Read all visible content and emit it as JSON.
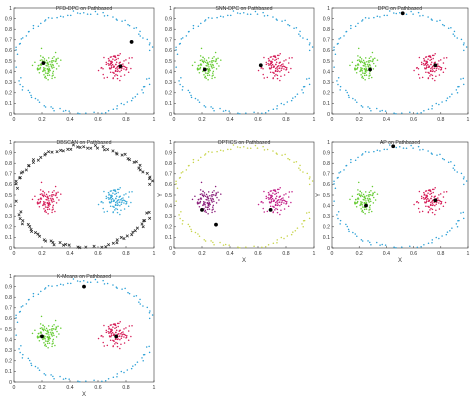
{
  "figure": {
    "panel_count": 7
  },
  "chart_data": [
    {
      "type": "scatter",
      "title": "PFD-DPC on Pathbased",
      "xlabel": "",
      "ylabel": "",
      "xlim": [
        0,
        1
      ],
      "ylim": [
        0,
        1
      ],
      "xticks": [
        "0",
        "0.2",
        "0.4",
        "0.6",
        "0.8",
        "1"
      ],
      "yticks": [
        "0",
        "0.1",
        "0.2",
        "0.3",
        "0.4",
        "0.5",
        "0.6",
        "0.7",
        "0.8",
        "0.9",
        "1"
      ],
      "grid": false,
      "series": [
        {
          "color": "#2a9fd6",
          "marker": "dot",
          "group": "ring"
        },
        {
          "color": "#66cc33",
          "marker": "dot",
          "group": "left-blob"
        },
        {
          "color": "#d61f5a",
          "marker": "dot",
          "group": "right-blob"
        }
      ],
      "centers": [
        [
          0.21,
          0.48
        ],
        [
          0.76,
          0.45
        ],
        [
          0.84,
          0.68
        ]
      ]
    },
    {
      "type": "scatter",
      "title": "SNN-DPC on Pathbased",
      "xlabel": "",
      "ylabel": "",
      "xlim": [
        0,
        1
      ],
      "ylim": [
        0,
        1
      ],
      "xticks": [
        "0",
        "0.2",
        "0.4",
        "0.6",
        "0.8",
        "1"
      ],
      "yticks": [
        "0",
        "0.1",
        "0.2",
        "0.3",
        "0.4",
        "0.5",
        "0.6",
        "0.7",
        "0.8",
        "0.9",
        "1"
      ],
      "grid": false,
      "series": [
        {
          "color": "#2a9fd6",
          "marker": "dot",
          "group": "ring"
        },
        {
          "color": "#66cc33",
          "marker": "dot",
          "group": "left-blob"
        },
        {
          "color": "#d61f5a",
          "marker": "dot",
          "group": "right-blob"
        }
      ],
      "centers": [
        [
          0.22,
          0.42
        ],
        [
          0.62,
          0.46
        ]
      ]
    },
    {
      "type": "scatter",
      "title": "DPC on Pathbased",
      "xlabel": "",
      "ylabel": "",
      "xlim": [
        0,
        1
      ],
      "ylim": [
        0,
        1
      ],
      "xticks": [
        "0",
        "0.2",
        "0.4",
        "0.6",
        "0.8",
        "1"
      ],
      "yticks": [
        "0",
        "0.1",
        "0.2",
        "0.3",
        "0.4",
        "0.5",
        "0.6",
        "0.7",
        "0.8",
        "0.9",
        "1"
      ],
      "grid": false,
      "series": [
        {
          "color": "#2a9fd6",
          "marker": "dot",
          "group": "ring"
        },
        {
          "color": "#66cc33",
          "marker": "dot",
          "group": "left-blob"
        },
        {
          "color": "#d61f5a",
          "marker": "dot",
          "group": "right-blob"
        }
      ],
      "centers": [
        [
          0.28,
          0.42
        ],
        [
          0.76,
          0.46
        ],
        [
          0.52,
          0.95
        ]
      ]
    },
    {
      "type": "scatter",
      "title": "DBSCAN on Pathbased",
      "xlabel": "",
      "ylabel": "",
      "xlim": [
        0,
        1
      ],
      "ylim": [
        0,
        1
      ],
      "xticks": [
        "0",
        "0.2",
        "0.4",
        "0.6",
        "0.8",
        "1"
      ],
      "yticks": [
        "0",
        "0.1",
        "0.2",
        "0.3",
        "0.4",
        "0.5",
        "0.6",
        "0.7",
        "0.8",
        "0.9",
        "1"
      ],
      "grid": false,
      "series": [
        {
          "color": "#222222",
          "marker": "x",
          "group": "ring"
        },
        {
          "color": "#d61f5a",
          "marker": "dot",
          "group": "left-blob"
        },
        {
          "color": "#3aaad8",
          "marker": "dot",
          "group": "right-blob"
        }
      ],
      "centers": []
    },
    {
      "type": "scatter",
      "title": "OPTICS on Pathbased",
      "xlabel": "X",
      "ylabel": "Y",
      "xlim": [
        0,
        1
      ],
      "ylim": [
        0,
        1
      ],
      "xticks": [
        "0",
        "0.2",
        "0.4",
        "0.6",
        "0.8",
        "1"
      ],
      "yticks": [
        "0",
        "0.1",
        "0.2",
        "0.3",
        "0.4",
        "0.5",
        "0.6",
        "0.7",
        "0.8",
        "0.9",
        "1"
      ],
      "grid": false,
      "series": [
        {
          "color": "#c8d44a",
          "marker": "dot",
          "group": "ring"
        },
        {
          "color": "#8a1e7a",
          "marker": "dot",
          "group": "left-blob"
        },
        {
          "color": "#c2238a",
          "marker": "dot",
          "group": "right-blob"
        }
      ],
      "centers": [
        [
          0.2,
          0.36
        ],
        [
          0.69,
          0.36
        ],
        [
          0.3,
          0.22
        ]
      ]
    },
    {
      "type": "scatter",
      "title": "AP on Pathbased",
      "xlabel": "X",
      "ylabel": "Y",
      "xlim": [
        0,
        1
      ],
      "ylim": [
        0,
        1
      ],
      "xticks": [
        "0",
        "0.2",
        "0.4",
        "0.6",
        "0.8",
        "1"
      ],
      "yticks": [
        "0",
        "0.1",
        "0.2",
        "0.3",
        "0.4",
        "0.5",
        "0.6",
        "0.7",
        "0.8",
        "0.9",
        "1"
      ],
      "grid": false,
      "series": [
        {
          "color": "#2a9fd6",
          "marker": "dot",
          "group": "ring"
        },
        {
          "color": "#66cc33",
          "marker": "dot",
          "group": "left-blob"
        },
        {
          "color": "#d61f5a",
          "marker": "dot",
          "group": "right-blob"
        }
      ],
      "centers": [
        [
          0.25,
          0.4
        ],
        [
          0.76,
          0.45
        ],
        [
          0.45,
          0.96
        ]
      ]
    },
    {
      "type": "scatter",
      "title": "K-Means on Pathbased",
      "xlabel": "X",
      "ylabel": "Y",
      "xlim": [
        0,
        1
      ],
      "ylim": [
        0,
        1
      ],
      "xticks": [
        "0",
        "0.2",
        "0.4",
        "0.6",
        "0.8",
        "1"
      ],
      "yticks": [
        "0",
        "0.1",
        "0.2",
        "0.3",
        "0.4",
        "0.5",
        "0.6",
        "0.7",
        "0.8",
        "0.9",
        "1"
      ],
      "grid": false,
      "series": [
        {
          "color": "#2a9fd6",
          "marker": "dot",
          "group": "ring"
        },
        {
          "color": "#66cc33",
          "marker": "dot",
          "group": "left-blob"
        },
        {
          "color": "#d61f5a",
          "marker": "dot",
          "group": "right-blob"
        }
      ],
      "centers": [
        [
          0.2,
          0.43
        ],
        [
          0.73,
          0.43
        ],
        [
          0.5,
          0.9
        ]
      ]
    }
  ]
}
